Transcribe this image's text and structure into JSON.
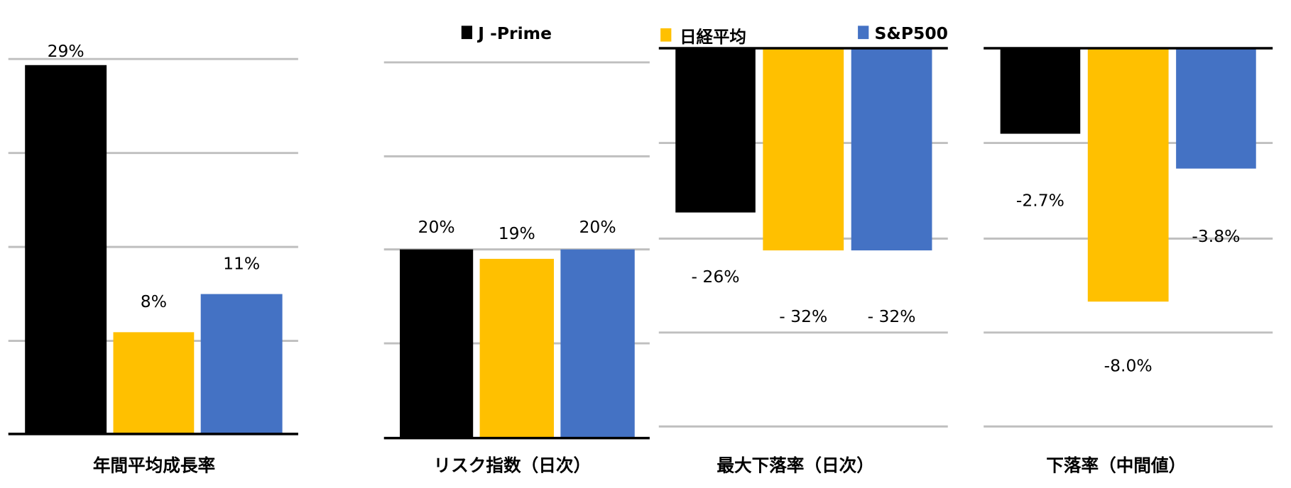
{
  "colors": {
    "J-Prime": "#000000",
    "Nikkei": "#FFC000",
    "SP500": "#4472C4",
    "grid": "#BFBFBF",
    "axis": "#000000"
  },
  "legend": [
    {
      "label": "J -Prime",
      "color": "#000000"
    },
    {
      "label": "日経平均",
      "color": "#FFC000"
    },
    {
      "label": "S&P500",
      "color": "#4472C4"
    }
  ],
  "chart_data": [
    {
      "type": "bar",
      "title": "年間平均成長率",
      "categories": [
        "J -Prime",
        "日経平均",
        "S&P500"
      ],
      "values": [
        29,
        8,
        11
      ],
      "labels": [
        "29%",
        "8%",
        "11%"
      ],
      "unit": "%"
    },
    {
      "type": "bar",
      "title": "リスク指数（日次）",
      "categories": [
        "J -Prime",
        "日経平均",
        "S&P500"
      ],
      "values": [
        20,
        19,
        20
      ],
      "labels": [
        "20%",
        "19%",
        "20%"
      ],
      "unit": "%",
      "ylim": [
        0,
        40
      ]
    },
    {
      "type": "bar",
      "title": "最大下落率（日次）",
      "categories": [
        "J -Prime",
        "日経平均",
        "S&P500"
      ],
      "values": [
        -26,
        -32,
        -32
      ],
      "labels": [
        "- 26%",
        "- 32%",
        "- 32%"
      ],
      "unit": "%",
      "ylim": [
        -60,
        0
      ]
    },
    {
      "type": "bar",
      "title": "下落率（中間値）",
      "categories": [
        "J -Prime",
        "日経平均",
        "S&P500"
      ],
      "values": [
        -2.7,
        -8.0,
        -3.8
      ],
      "labels": [
        "-2.7%",
        "-8.0%",
        "-3.8%"
      ],
      "unit": "%",
      "ylim": [
        -12,
        0
      ]
    }
  ]
}
